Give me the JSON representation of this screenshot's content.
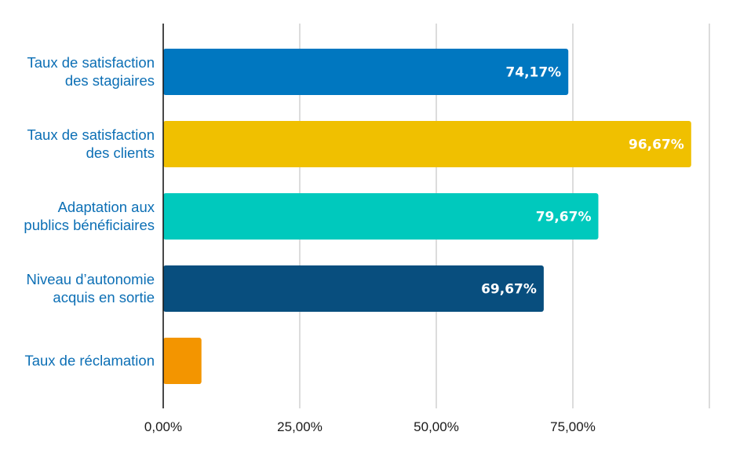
{
  "chart_data": {
    "type": "bar",
    "orientation": "horizontal",
    "title": "",
    "xlabel": "",
    "ylabel": "",
    "xlim": [
      0,
      100
    ],
    "grid": true,
    "legend": "none",
    "x_ticks": [
      {
        "value": 0,
        "label": "0,00%"
      },
      {
        "value": 25,
        "label": "25,00%"
      },
      {
        "value": 50,
        "label": "50,00%"
      },
      {
        "value": 75,
        "label": "75,00%"
      }
    ],
    "categories": [
      [
        "Taux de satisfaction",
        "des stagiaires"
      ],
      [
        "Taux de satisfaction",
        "des clients"
      ],
      [
        "Adaptation aux",
        "publics bénéficiaires"
      ],
      [
        "Niveau d’autonomie",
        "acquis en sortie"
      ],
      [
        "Taux de réclamation"
      ]
    ],
    "values": [
      74.17,
      96.67,
      79.67,
      69.67,
      7
    ],
    "data_labels": [
      "74,17%",
      "96,67%",
      "79,67%",
      "69,67%",
      ""
    ],
    "colors": [
      "#0077c0",
      "#f0c000",
      "#00c9bd",
      "#084e7e",
      "#f39500"
    ],
    "category_label_color": "#0c6fb5",
    "grid_color": "#c4c4c4",
    "axis_color": "#1a1a1a"
  }
}
